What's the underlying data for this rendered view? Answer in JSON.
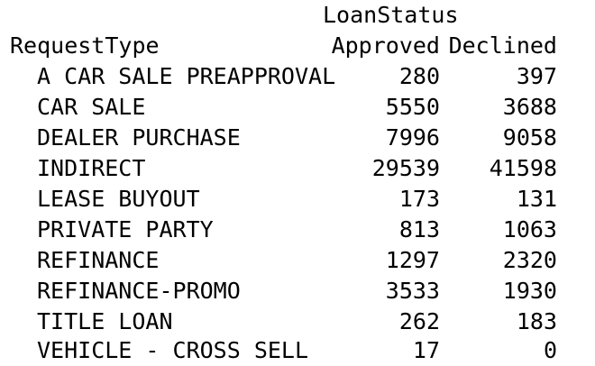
{
  "table": {
    "column_variable": "LoanStatus",
    "row_variable": "RequestType",
    "columns": [
      "Approved",
      "Declined"
    ],
    "rows": [
      {
        "label": "A CAR SALE PREAPPROVAL",
        "values": [
          "280",
          "397"
        ]
      },
      {
        "label": "CAR SALE",
        "values": [
          "5550",
          "3688"
        ]
      },
      {
        "label": "DEALER PURCHASE",
        "values": [
          "7996",
          "9058"
        ]
      },
      {
        "label": "INDIRECT",
        "values": [
          "29539",
          "41598"
        ]
      },
      {
        "label": "LEASE BUYOUT",
        "values": [
          "173",
          "131"
        ]
      },
      {
        "label": "PRIVATE PARTY",
        "values": [
          "813",
          "1063"
        ]
      },
      {
        "label": "REFINANCE",
        "values": [
          "1297",
          "2320"
        ]
      },
      {
        "label": "REFINANCE-PROMO",
        "values": [
          "3533",
          "1930"
        ]
      },
      {
        "label": "TITLE LOAN",
        "values": [
          "262",
          "183"
        ]
      },
      {
        "label": "VEHICLE - CROSS SELL",
        "values": [
          "17",
          "0"
        ]
      }
    ]
  }
}
